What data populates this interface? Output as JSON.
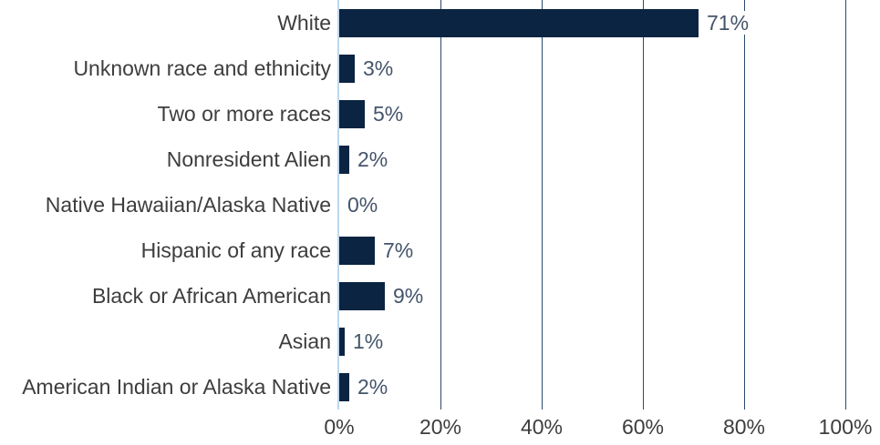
{
  "chart_data": {
    "type": "bar",
    "orientation": "horizontal",
    "categories": [
      "White",
      "Unknown race and ethnicity",
      "Two or more races",
      "Nonresident Alien",
      "Native Hawaiian/Alaska Native",
      "Hispanic of any race",
      "Black or African American",
      "Asian",
      "American Indian or Alaska Native"
    ],
    "values": [
      71,
      3,
      5,
      2,
      0,
      7,
      9,
      1,
      2
    ],
    "value_labels": [
      "71%",
      "3%",
      "5%",
      "2%",
      "0%",
      "7%",
      "9%",
      "1%",
      "2%"
    ],
    "x_ticks": [
      "0%",
      "20%",
      "40%",
      "60%",
      "80%",
      "100%"
    ],
    "xlim": [
      0,
      100
    ],
    "title": "",
    "xlabel": "",
    "ylabel": "",
    "grid": "vertical-gridlines-on",
    "legend": "none",
    "colors": {
      "bar": "#0B2442",
      "value_label": "#44546A",
      "category_label": "#3D3D3D",
      "tick_label": "#3D3D3D",
      "gridline": "#2B4A6F",
      "axis_line": "#BDD7EE",
      "background": "#FFFFFF"
    }
  }
}
